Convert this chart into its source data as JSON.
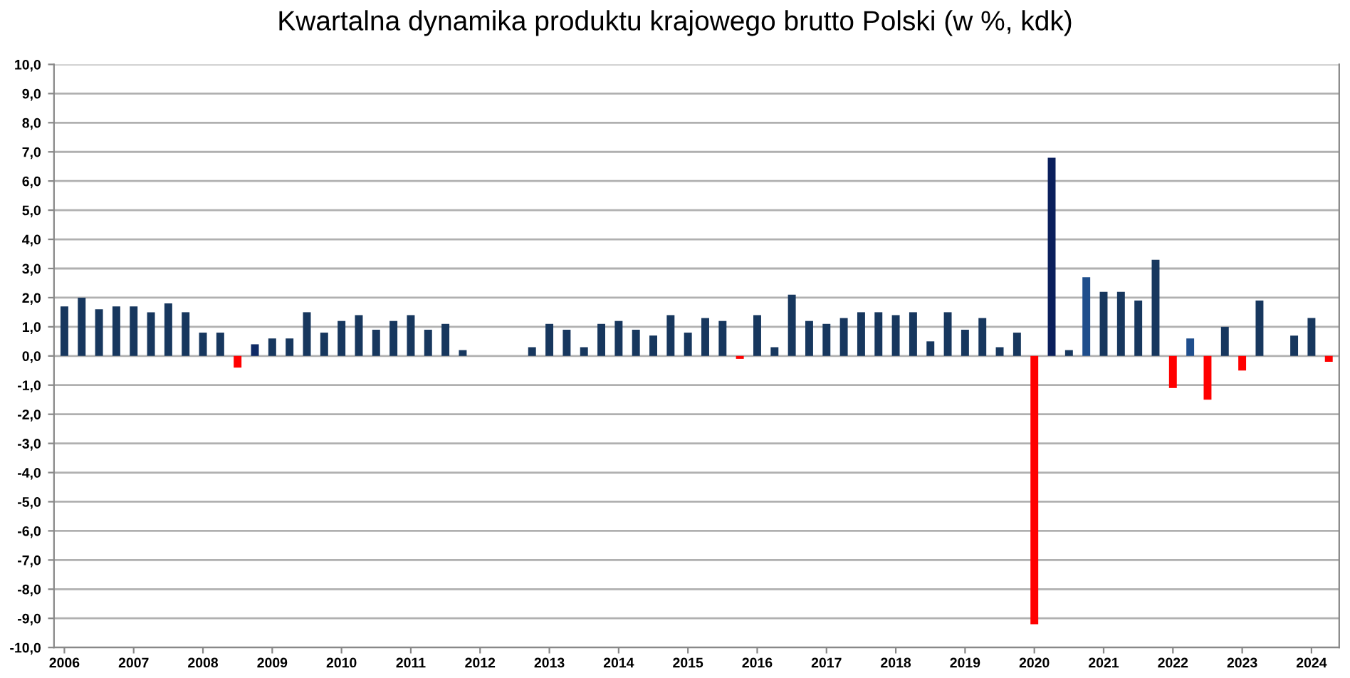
{
  "chart_data": {
    "type": "bar",
    "title": "Kwartalna dynamika produktu krajowego brutto Polski (w %, kdk)",
    "categories": [
      "2006",
      null,
      null,
      null,
      "2007",
      null,
      null,
      null,
      "2008",
      null,
      null,
      null,
      "2009",
      null,
      null,
      null,
      "2010",
      null,
      null,
      null,
      "2011",
      null,
      null,
      null,
      "2012",
      null,
      null,
      null,
      "2013",
      null,
      null,
      null,
      "2014",
      null,
      null,
      null,
      "2015",
      null,
      null,
      null,
      "2016",
      null,
      null,
      null,
      "2017",
      null,
      null,
      null,
      "2018",
      null,
      null,
      null,
      "2019",
      null,
      null,
      null,
      "2020",
      null,
      null,
      null,
      "2021",
      null,
      null,
      null,
      "2022",
      null,
      null,
      null,
      "2023",
      null,
      null,
      null,
      "2024",
      null
    ],
    "values": [
      1.7,
      2.0,
      1.6,
      1.7,
      1.7,
      1.5,
      1.8,
      1.5,
      0.8,
      0.8,
      -0.4,
      0.4,
      0.6,
      0.6,
      1.5,
      0.8,
      1.2,
      1.4,
      0.9,
      1.2,
      1.4,
      0.9,
      1.1,
      0.2,
      0.0,
      0.0,
      0.0,
      0.3,
      1.1,
      0.9,
      0.3,
      1.1,
      1.2,
      0.9,
      0.7,
      1.4,
      0.8,
      1.3,
      1.2,
      -0.1,
      1.4,
      0.3,
      2.1,
      1.2,
      1.1,
      1.3,
      1.5,
      1.5,
      1.4,
      1.5,
      0.5,
      1.5,
      0.9,
      1.3,
      0.3,
      0.8,
      -9.2,
      6.8,
      0.2,
      2.7,
      2.2,
      2.2,
      1.9,
      3.3,
      -1.1,
      0.6,
      -1.5,
      1.0,
      -0.5,
      1.9,
      0.0,
      0.7,
      1.3,
      -0.2
    ],
    "colors": [
      "#17375e",
      "#17375e",
      "#17375e",
      "#17375e",
      "#17375e",
      "#17375e",
      "#17375e",
      "#17375e",
      "#17375e",
      "#17375e",
      "#ff0000",
      "#0f2a66",
      "#17375e",
      "#17375e",
      "#17375e",
      "#17375e",
      "#17375e",
      "#17375e",
      "#17375e",
      "#17375e",
      "#17375e",
      "#17375e",
      "#17375e",
      "#17375e",
      "#17375e",
      "#17375e",
      "#17375e",
      "#17375e",
      "#17375e",
      "#17375e",
      "#17375e",
      "#17375e",
      "#17375e",
      "#17375e",
      "#17375e",
      "#17375e",
      "#17375e",
      "#17375e",
      "#17375e",
      "#ff0000",
      "#17375e",
      "#17375e",
      "#17375e",
      "#17375e",
      "#17375e",
      "#17375e",
      "#17375e",
      "#17375e",
      "#17375e",
      "#17375e",
      "#17375e",
      "#17375e",
      "#17375e",
      "#17375e",
      "#17375e",
      "#17375e",
      "#ff0000",
      "#0a1f5c",
      "#17375e",
      "#1f4e8c",
      "#17375e",
      "#17375e",
      "#17375e",
      "#17375e",
      "#ff0000",
      "#1f4e8c",
      "#ff0000",
      "#17375e",
      "#ff0000",
      "#17375e",
      "#17375e",
      "#17375e",
      "#17375e",
      "#ff0000"
    ],
    "ylim": [
      -10,
      10
    ],
    "yticks": [
      {
        "value": 10,
        "label": "10,0"
      },
      {
        "value": 9,
        "label": "9,0"
      },
      {
        "value": 8,
        "label": "8,0"
      },
      {
        "value": 7,
        "label": "7,0"
      },
      {
        "value": 6,
        "label": "6,0"
      },
      {
        "value": 5,
        "label": "5,0"
      },
      {
        "value": 4,
        "label": "4,0"
      },
      {
        "value": 3,
        "label": "3,0"
      },
      {
        "value": 2,
        "label": "2,0"
      },
      {
        "value": 1,
        "label": "1,0"
      },
      {
        "value": 0,
        "label": "0,0"
      },
      {
        "value": -1,
        "label": "-1,0"
      },
      {
        "value": -2,
        "label": "-2,0"
      },
      {
        "value": -3,
        "label": "-3,0"
      },
      {
        "value": -4,
        "label": "-4,0"
      },
      {
        "value": -5,
        "label": "-5,0"
      },
      {
        "value": -6,
        "label": "-6,0"
      },
      {
        "value": -7,
        "label": "-7,0"
      },
      {
        "value": -8,
        "label": "-8,0"
      },
      {
        "value": -9,
        "label": "-9,0"
      },
      {
        "value": -10,
        "label": "-10,0"
      }
    ],
    "grid": "y"
  }
}
